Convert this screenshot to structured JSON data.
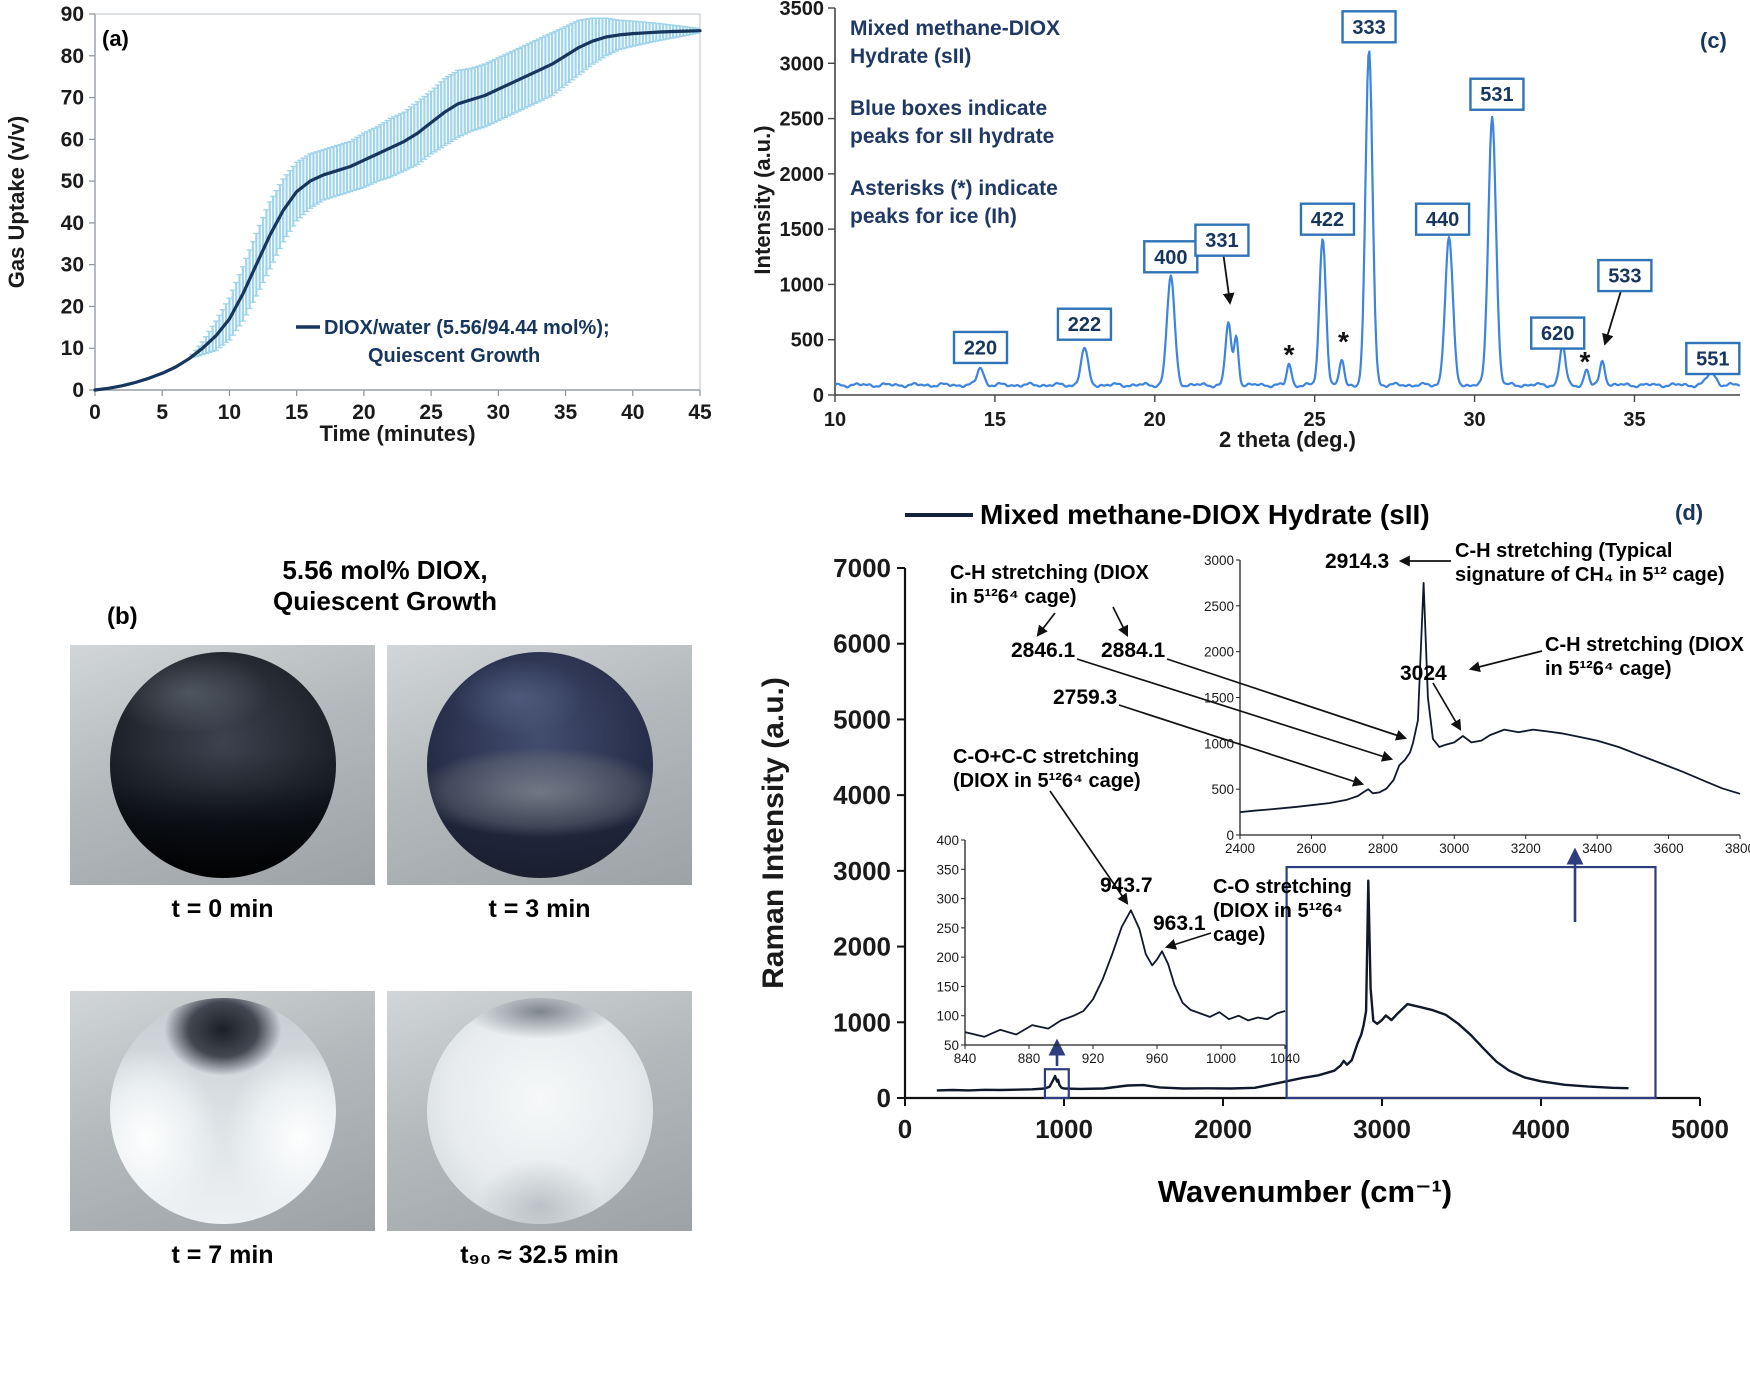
{
  "figure": {
    "panel_a_label": "(a)",
    "panel_b_label": "(b)",
    "panel_c_label": "(c)",
    "panel_d_label": "(d)"
  },
  "panel_b": {
    "title": "5.56 mol% DIOX,\nQuiescent Growth",
    "photos": [
      {
        "caption": "t = 0 min"
      },
      {
        "caption": "t = 3 min"
      },
      {
        "caption": "t = 7 min"
      },
      {
        "caption": "t₉₀ ≈ 32.5 min"
      }
    ]
  },
  "panel_d_annotations": {
    "legend": "Mixed methane-DIOX Hydrate (sII)",
    "ylabel": "Raman Intensity (a.u.)",
    "xlabel": "Wavenumber (cm⁻¹)",
    "ch_diox_left": "C-H stretching (DIOX\nin 5¹²6⁴ cage)",
    "v2846": "2846.1",
    "v2884": "2884.1",
    "v2759": "2759.3",
    "v2914": "2914.3",
    "ch_ch4": "C-H stretching (Typical\nsignature of CH₄ in 5¹² cage)",
    "v3024": "3024",
    "ch_diox_right": "C-H stretching (DIOX\nin 5¹²6⁴ cage)",
    "coc": "C-O+C-C stretching\n(DIOX in 5¹²6⁴ cage)",
    "v9437": "943.7",
    "v9631": "963.1",
    "co": "C-O stretching\n(DIOX in 5¹²6⁴\ncage)"
  },
  "chart_data": [
    {
      "id": "gas_uptake",
      "type": "line",
      "panel": "a",
      "xlabel": "Time (minutes)",
      "ylabel": "Gas Uptake (v/v)",
      "xlim": [
        0,
        45
      ],
      "ylim": [
        0,
        90
      ],
      "xtick_step": 5,
      "ytick_step": 10,
      "legend_line1": "DIOX/water (5.56/94.44 mol%);",
      "legend_line2": "Quiescent Growth",
      "line_color": "#17365d",
      "err_color": "#9fd4ea",
      "x": [
        0,
        1,
        2,
        3,
        4,
        5,
        6,
        7,
        8,
        9,
        10,
        11,
        12,
        13,
        14,
        15,
        16,
        17,
        18,
        19,
        20,
        21,
        22,
        23,
        24,
        25,
        26,
        27,
        28,
        29,
        30,
        31,
        32,
        33,
        34,
        35,
        36,
        37,
        38,
        39,
        40,
        41,
        42,
        43,
        44,
        45
      ],
      "y": [
        0,
        0.4,
        1,
        1.8,
        2.8,
        4,
        5.5,
        7.5,
        10,
        13,
        17,
        23,
        30,
        37,
        43,
        47.5,
        50,
        51.5,
        52.5,
        53.5,
        55,
        56.5,
        58,
        59.5,
        61.5,
        64,
        66.5,
        68.5,
        69.5,
        70.5,
        72,
        73.5,
        75,
        76.5,
        78,
        80,
        82,
        83.5,
        84.5,
        85,
        85.3,
        85.5,
        85.7,
        85.8,
        85.9,
        86
      ],
      "yerr": [
        0,
        0,
        0,
        0,
        0,
        0,
        0,
        0,
        1.5,
        3.5,
        5,
        6.5,
        7.5,
        8,
        7.5,
        7,
        6.5,
        6,
        6,
        6,
        6.5,
        6.5,
        7,
        7,
        7.5,
        7.5,
        8,
        8,
        7.5,
        7.5,
        7.5,
        7.5,
        7.5,
        7.5,
        7.5,
        7,
        6.5,
        5.5,
        4.5,
        3.5,
        3,
        2.5,
        2,
        1.5,
        1,
        0.5
      ]
    },
    {
      "id": "pxrd",
      "type": "line",
      "panel": "c",
      "xlabel": "2 theta (deg.)",
      "ylabel": "Intensity (a.u.)",
      "xlim": [
        10,
        38.3
      ],
      "ylim": [
        0,
        3500
      ],
      "xticks": [
        10,
        15,
        20,
        25,
        30,
        35
      ],
      "ytick_step": 500,
      "line_color": "#3c84dd",
      "box_color": "#2f74b8",
      "text_color": "#1f3864",
      "baseline": 90,
      "peaks": [
        [
          14.55,
          160,
          0.1
        ],
        [
          17.8,
          330,
          0.11
        ],
        [
          20.5,
          980,
          0.12
        ],
        [
          22.3,
          560,
          0.09
        ],
        [
          22.55,
          430,
          0.07
        ],
        [
          24.2,
          190,
          0.07
        ],
        [
          25.25,
          1330,
          0.1
        ],
        [
          25.85,
          230,
          0.07
        ],
        [
          26.7,
          3020,
          0.11
        ],
        [
          29.2,
          1330,
          0.12
        ],
        [
          30.55,
          2430,
          0.12
        ],
        [
          32.75,
          360,
          0.09
        ],
        [
          33.5,
          140,
          0.07
        ],
        [
          34.0,
          220,
          0.08
        ],
        [
          37.4,
          110,
          0.14
        ]
      ],
      "peak_labels": [
        {
          "text": "220",
          "x": 14.55,
          "y": 430
        },
        {
          "text": "222",
          "x": 17.8,
          "y": 640
        },
        {
          "text": "400",
          "x": 20.5,
          "y": 1250
        },
        {
          "text": "331",
          "x": 22.1,
          "y": 1400,
          "arrow": [
            22.35,
            800
          ]
        },
        {
          "text": "422",
          "x": 25.4,
          "y": 1590
        },
        {
          "text": "333",
          "x": 26.7,
          "y": 3330
        },
        {
          "text": "440",
          "x": 29.0,
          "y": 1590
        },
        {
          "text": "531",
          "x": 30.7,
          "y": 2720
        },
        {
          "text": "620",
          "x": 32.6,
          "y": 560
        },
        {
          "text": "533",
          "x": 34.7,
          "y": 1080,
          "arrow": [
            34.08,
            430
          ]
        },
        {
          "text": "551",
          "x": 37.45,
          "y": 330
        }
      ],
      "asterisk_symbol": "*",
      "asterisks": [
        [
          24.2,
          360
        ],
        [
          25.9,
          480
        ],
        [
          33.45,
          300
        ]
      ],
      "notes": [
        "Mixed methane-DIOX\nHydrate (sII)",
        "Blue boxes indicate\npeaks for sII hydrate",
        "Asterisks (*) indicate\npeaks for ice (Ih)"
      ]
    },
    {
      "id": "raman_main",
      "type": "line",
      "panel": "d",
      "xlim": [
        0,
        5000
      ],
      "ylim": [
        0,
        7000
      ],
      "xtick_step": 1000,
      "ytick_step": 1000,
      "line_color": "#10192b",
      "zoom_box_color": "#2e3d7d",
      "zoom_boxes": [
        [
          880,
          0,
          1030,
          380
        ],
        [
          2400,
          0,
          4720,
          3050
        ]
      ],
      "points": [
        [
          200,
          100
        ],
        [
          300,
          105
        ],
        [
          400,
          100
        ],
        [
          500,
          108
        ],
        [
          600,
          105
        ],
        [
          700,
          110
        ],
        [
          800,
          115
        ],
        [
          880,
          125
        ],
        [
          910,
          150
        ],
        [
          930,
          230
        ],
        [
          944,
          290
        ],
        [
          952,
          240
        ],
        [
          958,
          215
        ],
        [
          963,
          240
        ],
        [
          972,
          170
        ],
        [
          985,
          135
        ],
        [
          1000,
          125
        ],
        [
          1100,
          120
        ],
        [
          1250,
          125
        ],
        [
          1400,
          165
        ],
        [
          1500,
          170
        ],
        [
          1600,
          140
        ],
        [
          1750,
          125
        ],
        [
          1900,
          128
        ],
        [
          2050,
          125
        ],
        [
          2200,
          135
        ],
        [
          2350,
          200
        ],
        [
          2500,
          265
        ],
        [
          2600,
          300
        ],
        [
          2700,
          360
        ],
        [
          2740,
          430
        ],
        [
          2759,
          490
        ],
        [
          2780,
          440
        ],
        [
          2810,
          500
        ],
        [
          2846,
          720
        ],
        [
          2870,
          840
        ],
        [
          2884,
          960
        ],
        [
          2900,
          1150
        ],
        [
          2914,
          2870
        ],
        [
          2928,
          1450
        ],
        [
          2945,
          1020
        ],
        [
          2970,
          980
        ],
        [
          3000,
          1030
        ],
        [
          3024,
          1090
        ],
        [
          3060,
          1030
        ],
        [
          3100,
          1120
        ],
        [
          3160,
          1240
        ],
        [
          3240,
          1200
        ],
        [
          3320,
          1160
        ],
        [
          3400,
          1100
        ],
        [
          3480,
          980
        ],
        [
          3560,
          830
        ],
        [
          3640,
          650
        ],
        [
          3720,
          480
        ],
        [
          3800,
          360
        ],
        [
          3900,
          270
        ],
        [
          4000,
          220
        ],
        [
          4150,
          175
        ],
        [
          4300,
          150
        ],
        [
          4450,
          135
        ],
        [
          4550,
          130
        ]
      ]
    },
    {
      "id": "raman_inset_low",
      "type": "line",
      "xlim": [
        840,
        1040
      ],
      "ylim": [
        50,
        400
      ],
      "xtick_step": 40,
      "ytick_step": 50,
      "line_color": "#10192b",
      "points": [
        [
          840,
          72
        ],
        [
          852,
          64
        ],
        [
          862,
          76
        ],
        [
          872,
          68
        ],
        [
          882,
          84
        ],
        [
          892,
          78
        ],
        [
          900,
          92
        ],
        [
          908,
          100
        ],
        [
          914,
          108
        ],
        [
          920,
          128
        ],
        [
          926,
          162
        ],
        [
          932,
          205
        ],
        [
          938,
          252
        ],
        [
          943.7,
          280
        ],
        [
          949,
          248
        ],
        [
          953,
          205
        ],
        [
          957,
          186
        ],
        [
          960,
          196
        ],
        [
          963.1,
          210
        ],
        [
          967,
          188
        ],
        [
          971,
          152
        ],
        [
          976,
          122
        ],
        [
          981,
          110
        ],
        [
          987,
          104
        ],
        [
          993,
          98
        ],
        [
          999,
          106
        ],
        [
          1005,
          94
        ],
        [
          1011,
          100
        ],
        [
          1017,
          92
        ],
        [
          1023,
          97
        ],
        [
          1029,
          94
        ],
        [
          1035,
          104
        ],
        [
          1040,
          108
        ]
      ]
    },
    {
      "id": "raman_inset_high",
      "type": "line",
      "xlim": [
        2400,
        3800
      ],
      "ylim": [
        0,
        3000
      ],
      "xtick_step": 200,
      "ytick_step": 500,
      "line_color": "#10192b",
      "points": [
        [
          2400,
          250
        ],
        [
          2440,
          265
        ],
        [
          2480,
          278
        ],
        [
          2520,
          292
        ],
        [
          2560,
          308
        ],
        [
          2600,
          325
        ],
        [
          2650,
          348
        ],
        [
          2700,
          385
        ],
        [
          2730,
          425
        ],
        [
          2745,
          465
        ],
        [
          2759,
          500
        ],
        [
          2772,
          455
        ],
        [
          2790,
          465
        ],
        [
          2810,
          505
        ],
        [
          2830,
          600
        ],
        [
          2846,
          760
        ],
        [
          2862,
          820
        ],
        [
          2876,
          900
        ],
        [
          2884,
          1000
        ],
        [
          2898,
          1250
        ],
        [
          2914,
          2750
        ],
        [
          2926,
          1500
        ],
        [
          2940,
          1050
        ],
        [
          2958,
          960
        ],
        [
          2976,
          985
        ],
        [
          3000,
          1010
        ],
        [
          3024,
          1080
        ],
        [
          3048,
          1010
        ],
        [
          3076,
          1030
        ],
        [
          3100,
          1090
        ],
        [
          3140,
          1150
        ],
        [
          3180,
          1120
        ],
        [
          3220,
          1150
        ],
        [
          3260,
          1130
        ],
        [
          3300,
          1110
        ],
        [
          3350,
          1070
        ],
        [
          3400,
          1030
        ],
        [
          3460,
          960
        ],
        [
          3520,
          870
        ],
        [
          3580,
          780
        ],
        [
          3640,
          690
        ],
        [
          3700,
          590
        ],
        [
          3750,
          510
        ],
        [
          3800,
          450
        ]
      ]
    }
  ]
}
